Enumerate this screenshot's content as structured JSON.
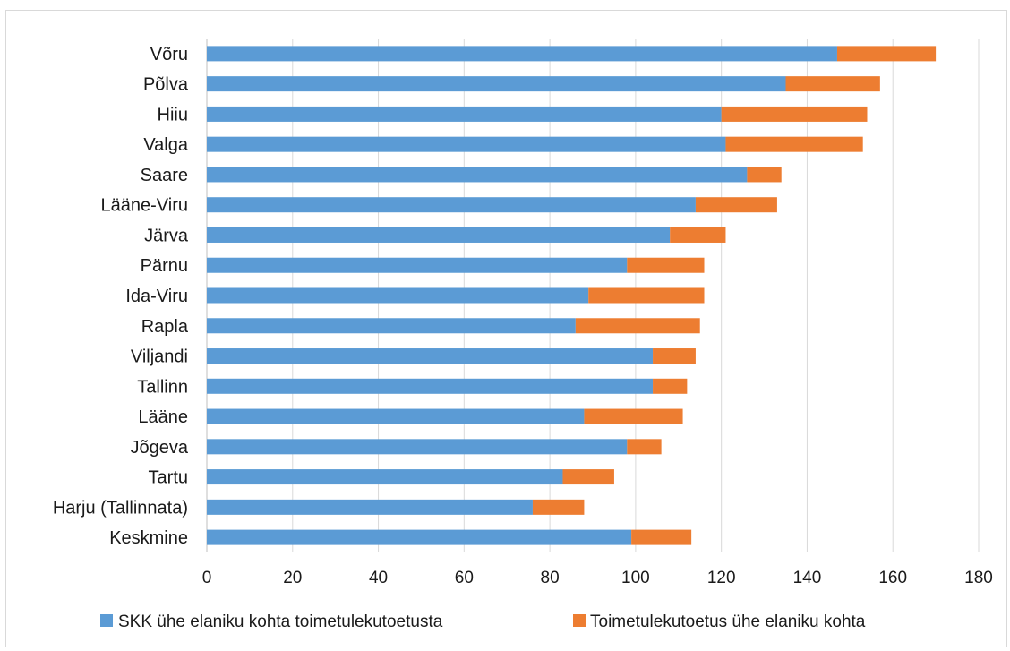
{
  "chart_data": {
    "type": "bar",
    "orientation": "horizontal",
    "stacked": true,
    "title": "",
    "xlabel": "",
    "ylabel": "",
    "xlim": [
      0,
      180
    ],
    "x_ticks": [
      "0",
      "20",
      "40",
      "60",
      "80",
      "100",
      "120",
      "140",
      "160",
      "180"
    ],
    "grid": "vertical",
    "legend_position": "bottom",
    "categories": [
      "Võru",
      "Põlva",
      "Hiiu",
      "Valga",
      "Saare",
      "Lääne-Viru",
      "Järva",
      "Pärnu",
      "Ida-Viru",
      "Rapla",
      "Viljandi",
      "Tallinn",
      "Lääne",
      "Jõgeva",
      "Tartu",
      "Harju (Tallinnata)",
      "Keskmine"
    ],
    "series": [
      {
        "name": "SKK ühe elaniku kohta toimetulekutoetusta",
        "color": "#5b9bd5",
        "values": [
          147,
          135,
          120,
          121,
          126,
          114,
          108,
          98,
          89,
          86,
          104,
          104,
          88,
          98,
          83,
          76,
          99
        ]
      },
      {
        "name": "Toimetulekutoetus ühe elaniku kohta",
        "color": "#ed7d31",
        "values": [
          23,
          22,
          34,
          32,
          8,
          19,
          13,
          18,
          27,
          29,
          10,
          8,
          23,
          8,
          12,
          12,
          14
        ]
      }
    ]
  }
}
